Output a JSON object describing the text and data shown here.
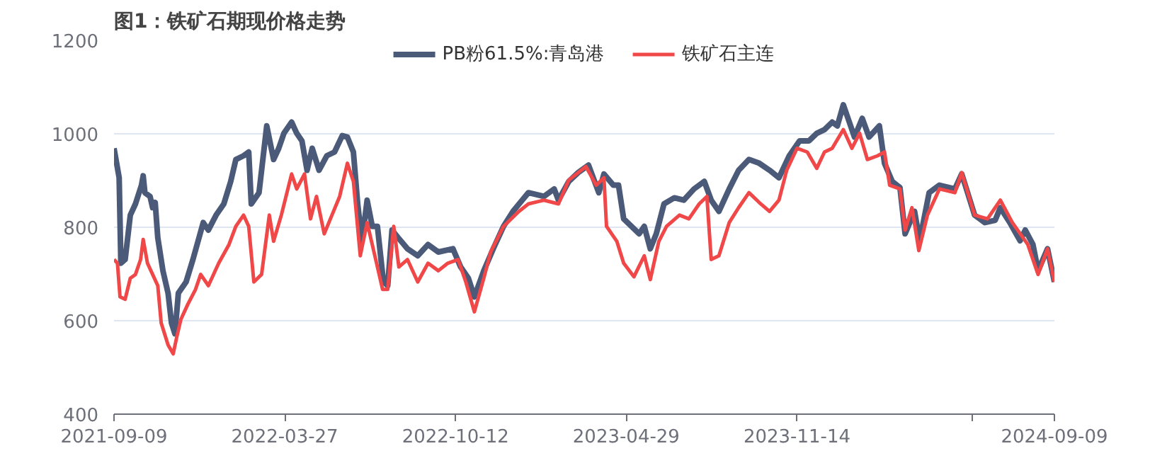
{
  "chart_data": {
    "type": "line",
    "title": "图1：铁矿石期现价格走势",
    "xlim": [
      "2021-09-09",
      "2024-09-09"
    ],
    "xticks": [
      {
        "value": "2021-09-09",
        "label": "2021-09-09"
      },
      {
        "value": "2022-03-27",
        "label": "2022-03-27"
      },
      {
        "value": "2022-10-12",
        "label": "2022-10-12"
      },
      {
        "value": "2023-04-29",
        "label": "2023-04-29"
      },
      {
        "value": "2023-11-14",
        "label": "2023-11-14"
      },
      {
        "value": "2024-06-05",
        "label": null
      },
      {
        "value": "2024-09-09",
        "label": "2024-09-09"
      }
    ],
    "ylim": [
      400,
      1200
    ],
    "yticks": [
      400,
      600,
      800,
      1000,
      1200
    ],
    "grid": "y",
    "legend": "top",
    "line_style": "solid",
    "series": [
      {
        "name": "PB粉61.5%:青岛港",
        "color": "#4a5a78",
        "x": [
          "2021-09-09",
          "2021-09-15",
          "2021-09-17",
          "2021-09-22",
          "2021-09-28",
          "2021-10-04",
          "2021-10-11",
          "2021-10-13",
          "2021-10-15",
          "2021-10-21",
          "2021-10-24",
          "2021-10-27",
          "2021-10-30",
          "2021-11-05",
          "2021-11-11",
          "2021-11-15",
          "2021-11-19",
          "2021-11-23",
          "2021-12-02",
          "2021-12-10",
          "2021-12-22",
          "2021-12-28",
          "2022-01-06",
          "2022-01-15",
          "2022-01-23",
          "2022-01-29",
          "2022-02-07",
          "2022-02-13",
          "2022-02-16",
          "2022-02-25",
          "2022-03-06",
          "2022-03-14",
          "2022-03-20",
          "2022-03-26",
          "2022-04-04",
          "2022-04-10",
          "2022-04-16",
          "2022-04-22",
          "2022-04-28",
          "2022-05-06",
          "2022-05-15",
          "2022-05-24",
          "2022-06-02",
          "2022-06-08",
          "2022-06-15",
          "2022-06-20",
          "2022-06-25",
          "2022-07-01",
          "2022-07-07",
          "2022-07-13",
          "2022-07-20",
          "2022-07-25",
          "2022-07-30",
          "2022-08-06",
          "2022-08-17",
          "2022-08-29",
          "2022-09-10",
          "2022-09-22",
          "2022-10-09",
          "2022-10-18",
          "2022-10-27",
          "2022-11-03",
          "2022-11-14",
          "2022-11-25",
          "2022-12-07",
          "2022-12-18",
          "2023-01-05",
          "2023-01-23",
          "2023-02-04",
          "2023-02-09",
          "2023-02-21",
          "2023-03-04",
          "2023-03-16",
          "2023-03-28",
          "2023-04-03",
          "2023-04-14",
          "2023-04-20",
          "2023-04-26",
          "2023-05-05",
          "2023-05-14",
          "2023-05-20",
          "2023-05-27",
          "2023-06-03",
          "2023-06-12",
          "2023-06-24",
          "2023-07-05",
          "2023-07-17",
          "2023-07-29",
          "2023-08-06",
          "2023-08-15",
          "2023-08-27",
          "2023-09-07",
          "2023-09-19",
          "2023-10-01",
          "2023-10-13",
          "2023-10-24",
          "2023-11-05",
          "2023-11-17",
          "2023-11-28",
          "2023-12-07",
          "2023-12-16",
          "2023-12-25",
          "2023-12-31",
          "2024-01-07",
          "2024-01-14",
          "2024-01-20",
          "2024-01-29",
          "2024-02-06",
          "2024-02-18",
          "2024-02-24",
          "2024-03-04",
          "2024-03-13",
          "2024-03-19",
          "2024-03-30",
          "2024-04-05",
          "2024-04-16",
          "2024-04-28",
          "2024-05-16",
          "2024-05-24",
          "2024-06-08",
          "2024-06-20",
          "2024-07-02",
          "2024-07-08",
          "2024-07-19",
          "2024-07-31",
          "2024-08-06",
          "2024-08-15",
          "2024-08-21",
          "2024-09-01",
          "2024-09-09"
        ],
        "values": [
          969,
          906,
          723,
          731,
          826,
          850,
          890,
          910,
          874,
          866,
          842,
          853,
          778,
          707,
          659,
          595,
          572,
          659,
          683,
          731,
          810,
          794,
          826,
          850,
          898,
          945,
          953,
          961,
          850,
          874,
          1017,
          945,
          969,
          1001,
          1025,
          1001,
          985,
          922,
          969,
          922,
          953,
          961,
          996,
          993,
          961,
          850,
          770,
          858,
          802,
          802,
          683,
          675,
          794,
          778,
          754,
          739,
          763,
          747,
          754,
          715,
          691,
          651,
          707,
          754,
          802,
          834,
          874,
          866,
          882,
          858,
          898,
          917,
          933,
          874,
          914,
          890,
          890,
          818,
          802,
          786,
          802,
          754,
          786,
          850,
          863,
          858,
          882,
          898,
          858,
          834,
          882,
          922,
          945,
          937,
          922,
          906,
          953,
          985,
          985,
          1001,
          1009,
          1025,
          1017,
          1062,
          1025,
          993,
          1033,
          993,
          1017,
          937,
          898,
          885,
          786,
          834,
          771,
          874,
          890,
          882,
          914,
          826,
          810,
          815,
          842,
          810,
          771,
          794,
          763,
          707,
          754,
          683
        ]
      },
      {
        "name": "铁矿石主连",
        "color": "#f04848",
        "x": [
          "2021-09-09",
          "2021-09-13",
          "2021-09-16",
          "2021-09-22",
          "2021-09-28",
          "2021-10-04",
          "2021-10-10",
          "2021-10-13",
          "2021-10-18",
          "2021-10-24",
          "2021-10-30",
          "2021-11-03",
          "2021-11-11",
          "2021-11-17",
          "2021-11-21",
          "2021-11-26",
          "2021-12-04",
          "2021-12-13",
          "2021-12-19",
          "2021-12-28",
          "2022-01-09",
          "2022-01-21",
          "2022-01-29",
          "2022-02-07",
          "2022-02-13",
          "2022-02-19",
          "2022-02-28",
          "2022-03-09",
          "2022-03-14",
          "2022-03-23",
          "2022-04-04",
          "2022-04-10",
          "2022-04-19",
          "2022-04-26",
          "2022-05-03",
          "2022-05-12",
          "2022-05-21",
          "2022-05-30",
          "2022-06-08",
          "2022-06-15",
          "2022-06-23",
          "2022-07-01",
          "2022-07-10",
          "2022-07-19",
          "2022-07-25",
          "2022-08-01",
          "2022-08-07",
          "2022-08-17",
          "2022-08-29",
          "2022-09-10",
          "2022-09-22",
          "2022-10-03",
          "2022-10-15",
          "2022-10-24",
          "2022-11-03",
          "2022-11-14",
          "2022-11-22",
          "2022-12-07",
          "2022-12-25",
          "2023-01-05",
          "2023-01-23",
          "2023-02-09",
          "2023-02-21",
          "2023-03-13",
          "2023-03-25",
          "2023-04-03",
          "2023-04-06",
          "2023-04-18",
          "2023-04-26",
          "2023-05-08",
          "2023-05-20",
          "2023-05-27",
          "2023-06-06",
          "2023-06-15",
          "2023-06-30",
          "2023-07-11",
          "2023-07-23",
          "2023-08-01",
          "2023-08-06",
          "2023-08-15",
          "2023-08-27",
          "2023-09-07",
          "2023-09-19",
          "2023-10-01",
          "2023-10-13",
          "2023-10-24",
          "2023-11-02",
          "2023-11-14",
          "2023-11-26",
          "2023-12-07",
          "2023-12-16",
          "2023-12-25",
          "2024-01-07",
          "2024-01-17",
          "2024-01-26",
          "2024-02-04",
          "2024-02-16",
          "2024-02-24",
          "2024-03-01",
          "2024-03-13",
          "2024-03-19",
          "2024-03-27",
          "2024-04-04",
          "2024-04-14",
          "2024-04-28",
          "2024-05-16",
          "2024-05-24",
          "2024-06-08",
          "2024-06-23",
          "2024-07-08",
          "2024-07-22",
          "2024-08-09",
          "2024-08-21",
          "2024-09-01",
          "2024-09-09"
        ],
        "values": [
          731,
          723,
          651,
          646,
          691,
          699,
          731,
          774,
          723,
          699,
          675,
          595,
          548,
          529,
          564,
          603,
          635,
          667,
          699,
          675,
          723,
          763,
          802,
          826,
          802,
          683,
          699,
          826,
          770,
          826,
          914,
          882,
          914,
          818,
          866,
          786,
          826,
          866,
          937,
          898,
          739,
          810,
          739,
          667,
          667,
          802,
          715,
          731,
          683,
          723,
          707,
          723,
          731,
          683,
          619,
          691,
          747,
          802,
          834,
          850,
          858,
          850,
          901,
          930,
          890,
          906,
          802,
          770,
          723,
          694,
          739,
          688,
          770,
          802,
          826,
          818,
          850,
          866,
          731,
          739,
          810,
          842,
          874,
          853,
          834,
          858,
          922,
          969,
          961,
          926,
          961,
          969,
          1009,
          969,
          1001,
          945,
          953,
          961,
          890,
          882,
          794,
          842,
          750,
          826,
          882,
          874,
          917,
          826,
          818,
          858,
          810,
          763,
          699,
          754,
          683
        ]
      }
    ]
  }
}
